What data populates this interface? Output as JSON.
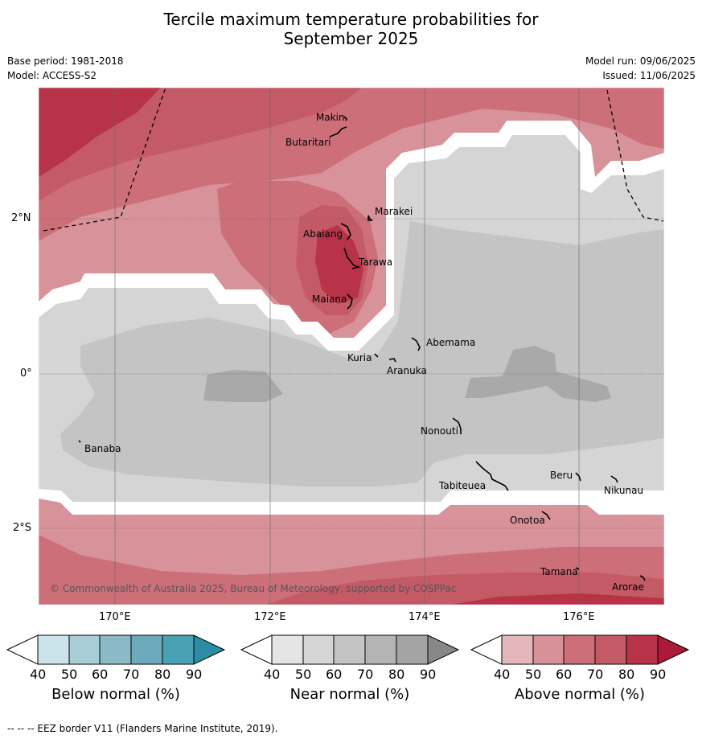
{
  "title_line1": "Tercile maximum temperature probabilities for",
  "title_line2": "September 2025",
  "base_period": "Base period: 1981-2018",
  "model": "Model: ACCESS-S2",
  "model_run": "Model run: 09/06/2025",
  "issued": "Issued: 11/06/2025",
  "lat_labels": [
    "2°N",
    "0°",
    "2°S"
  ],
  "lon_labels": [
    "170°E",
    "172°E",
    "174°E",
    "176°E"
  ],
  "places": [
    "Makin",
    "Butaritari",
    "Marakei",
    "Abaiang",
    "Tarawa",
    "Maiana",
    "Abemama",
    "Kuria",
    "Aranuka",
    "Nonouti",
    "Banaba",
    "Tabiteuea",
    "Beru",
    "Nikunau",
    "Onotoa",
    "Tamana",
    "Arorae"
  ],
  "copyright": "© Commonwealth of Australia 2025, Bureau of Meteorology, supported by COSPPac",
  "colorbars": [
    {
      "label": "Below normal (%)",
      "ticks": [
        "40",
        "50",
        "60",
        "70",
        "80",
        "90"
      ],
      "colors": [
        "#ffffff",
        "#cbe3ea",
        "#a9cdd6",
        "#8bbac6",
        "#6cabbb",
        "#49a2b3",
        "#2c8ca4"
      ]
    },
    {
      "label": "Near normal (%)",
      "ticks": [
        "40",
        "50",
        "60",
        "70",
        "80",
        "90"
      ],
      "colors": [
        "#ffffff",
        "#e5e5e5",
        "#d5d5d5",
        "#c4c4c4",
        "#b4b4b4",
        "#a4a4a4",
        "#888888"
      ]
    },
    {
      "label": "Above normal (%)",
      "ticks": [
        "40",
        "50",
        "60",
        "70",
        "80",
        "90"
      ],
      "colors": [
        "#ffffff",
        "#e4b7bd",
        "#d79198",
        "#cd6f79",
        "#c45a66",
        "#b83347",
        "#ab1a38"
      ]
    }
  ],
  "footer": "--  --  -- EEZ border V11 (Flanders Marine Institute, 2019)."
}
